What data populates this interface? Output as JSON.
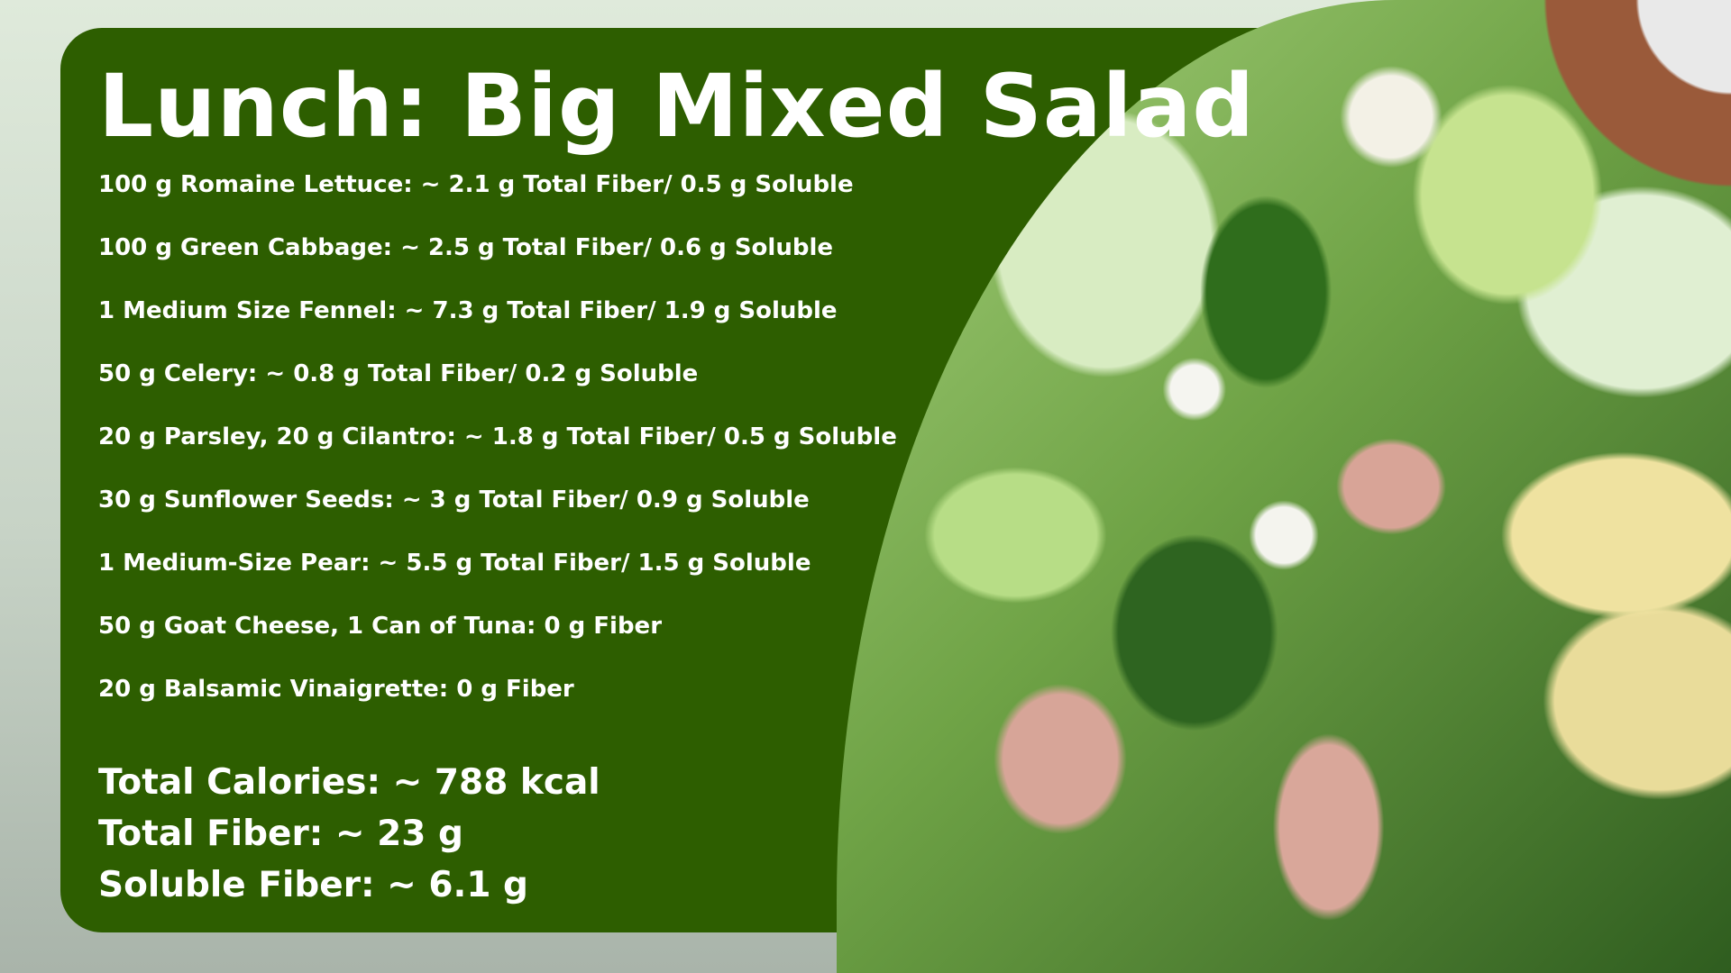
{
  "title": "Lunch:  Big Mixed Salad",
  "items": [
    "100 g Romaine Lettuce:  ~ 2.1 g Total Fiber/ 0.5 g Soluble",
    "100 g Green Cabbage:  ~ 2.5 g Total Fiber/ 0.6 g Soluble",
    "1 Medium Size Fennel:  ~ 7.3 g Total Fiber/ 1.9 g Soluble",
    "50 g Celery:  ~ 0.8 g Total Fiber/ 0.2 g Soluble",
    "20 g Parsley, 20 g Cilantro:  ~ 1.8 g Total Fiber/ 0.5 g Soluble",
    "30 g Sunflower Seeds:  ~ 3 g Total Fiber/ 0.9 g Soluble",
    "1 Medium-Size Pear:  ~ 5.5 g Total Fiber/ 1.5 g Soluble",
    "50 g Goat Cheese, 1 Can of Tuna:  0 g Fiber",
    "20 g Balsamic Vinaigrette:  0 g Fiber"
  ],
  "totals": [
    "Total Calories: ~ 788 kcal",
    "Total Fiber:   ~ 23 g",
    "Soluble Fiber:  ~ 6.1 g"
  ],
  "colors": {
    "card": "#2d5e00",
    "text": "#ffffff"
  }
}
